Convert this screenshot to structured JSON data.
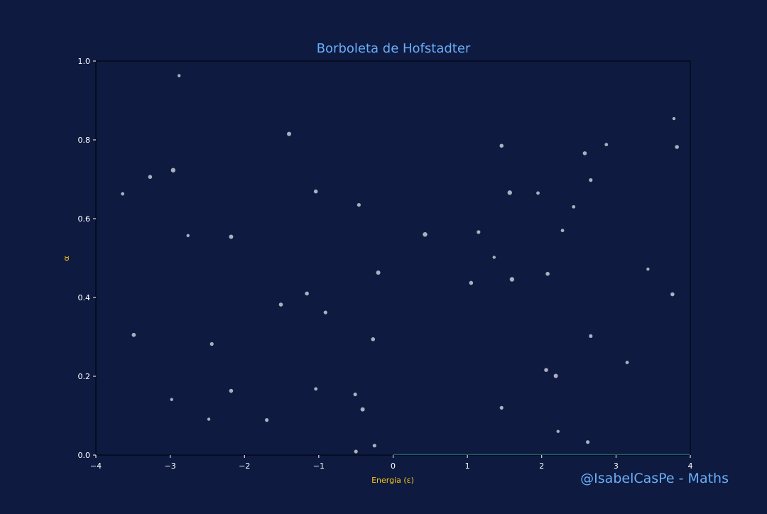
{
  "chart_data": {
    "type": "scatter",
    "title": "Borboleta de Hofstadter",
    "xlabel": "Energia (ε)",
    "ylabel": "α",
    "xlim": [
      -4,
      4
    ],
    "ylim": [
      0,
      1
    ],
    "xticks": [
      "−4",
      "−3",
      "−2",
      "−1",
      "0",
      "1",
      "2",
      "3",
      "4"
    ],
    "yticks": [
      "0.0",
      "0.2",
      "0.4",
      "0.6",
      "0.8",
      "1.0"
    ],
    "grid": false,
    "points": [
      {
        "x": -2.88,
        "y": 0.963,
        "s": 2.2
      },
      {
        "x": -3.64,
        "y": 0.663,
        "s": 2.4
      },
      {
        "x": -3.27,
        "y": 0.706,
        "s": 2.8
      },
      {
        "x": -2.96,
        "y": 0.723,
        "s": 3.2
      },
      {
        "x": -2.76,
        "y": 0.557,
        "s": 2.2
      },
      {
        "x": -2.18,
        "y": 0.554,
        "s": 3.0
      },
      {
        "x": -1.4,
        "y": 0.815,
        "s": 3.0
      },
      {
        "x": -1.04,
        "y": 0.669,
        "s": 2.8
      },
      {
        "x": -0.46,
        "y": 0.635,
        "s": 2.6
      },
      {
        "x": -3.49,
        "y": 0.305,
        "s": 2.8
      },
      {
        "x": -2.44,
        "y": 0.282,
        "s": 2.6
      },
      {
        "x": -1.51,
        "y": 0.382,
        "s": 2.8
      },
      {
        "x": -1.16,
        "y": 0.41,
        "s": 2.8
      },
      {
        "x": -0.91,
        "y": 0.362,
        "s": 2.6
      },
      {
        "x": -0.2,
        "y": 0.463,
        "s": 3.0
      },
      {
        "x": -0.27,
        "y": 0.294,
        "s": 2.8
      },
      {
        "x": -2.98,
        "y": 0.141,
        "s": 2.2
      },
      {
        "x": -2.18,
        "y": 0.163,
        "s": 2.8
      },
      {
        "x": -2.48,
        "y": 0.091,
        "s": 2.2
      },
      {
        "x": -1.7,
        "y": 0.089,
        "s": 2.6
      },
      {
        "x": -1.04,
        "y": 0.168,
        "s": 2.4
      },
      {
        "x": -0.51,
        "y": 0.154,
        "s": 2.6
      },
      {
        "x": -0.41,
        "y": 0.116,
        "s": 3.0
      },
      {
        "x": -0.25,
        "y": 0.024,
        "s": 2.6
      },
      {
        "x": -0.5,
        "y": 0.009,
        "s": 2.6
      },
      {
        "x": 0.43,
        "y": 0.56,
        "s": 3.2
      },
      {
        "x": 1.15,
        "y": 0.566,
        "s": 2.6
      },
      {
        "x": 1.05,
        "y": 0.437,
        "s": 2.8
      },
      {
        "x": 1.36,
        "y": 0.502,
        "s": 2.2
      },
      {
        "x": 1.46,
        "y": 0.785,
        "s": 2.8
      },
      {
        "x": 1.57,
        "y": 0.666,
        "s": 3.2
      },
      {
        "x": 1.6,
        "y": 0.446,
        "s": 3.2
      },
      {
        "x": 1.95,
        "y": 0.665,
        "s": 2.4
      },
      {
        "x": 2.08,
        "y": 0.46,
        "s": 2.8
      },
      {
        "x": 2.28,
        "y": 0.57,
        "s": 2.4
      },
      {
        "x": 2.43,
        "y": 0.63,
        "s": 2.4
      },
      {
        "x": 2.58,
        "y": 0.766,
        "s": 2.8
      },
      {
        "x": 2.87,
        "y": 0.788,
        "s": 2.4
      },
      {
        "x": 2.66,
        "y": 0.698,
        "s": 2.6
      },
      {
        "x": 3.43,
        "y": 0.472,
        "s": 2.2
      },
      {
        "x": 3.78,
        "y": 0.854,
        "s": 2.2
      },
      {
        "x": 3.82,
        "y": 0.782,
        "s": 2.8
      },
      {
        "x": 3.76,
        "y": 0.408,
        "s": 2.8
      },
      {
        "x": 2.66,
        "y": 0.302,
        "s": 2.6
      },
      {
        "x": 3.15,
        "y": 0.235,
        "s": 2.4
      },
      {
        "x": 2.06,
        "y": 0.216,
        "s": 2.8
      },
      {
        "x": 2.19,
        "y": 0.201,
        "s": 3.0
      },
      {
        "x": 1.46,
        "y": 0.12,
        "s": 2.6
      },
      {
        "x": 2.22,
        "y": 0.06,
        "s": 2.2
      },
      {
        "x": 2.62,
        "y": 0.033,
        "s": 2.6
      }
    ],
    "baseline": {
      "x0": 0,
      "x1": 4,
      "y": 0,
      "color": "#3fd0c8"
    },
    "colors": {
      "background": "#0e1a40",
      "title": "#6aaef5",
      "axis_label": "#f5c518",
      "ticks": "#ffffff",
      "points": "#c7cad6",
      "watermark": "#6aaef5"
    }
  },
  "watermark": "@IsabelCasPe - Maths"
}
